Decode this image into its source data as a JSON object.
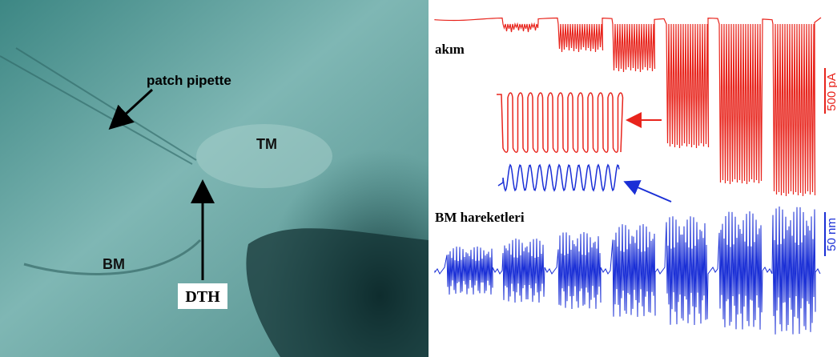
{
  "image": {
    "labels": {
      "pipette": "patch pipette",
      "tm": "TM",
      "bm": "BM",
      "dth": "DTH"
    }
  },
  "traces": {
    "current": {
      "label": "akım",
      "scale": "500 pA"
    },
    "motion": {
      "label": "BM hareketleri",
      "scale": "50 nm"
    }
  }
}
